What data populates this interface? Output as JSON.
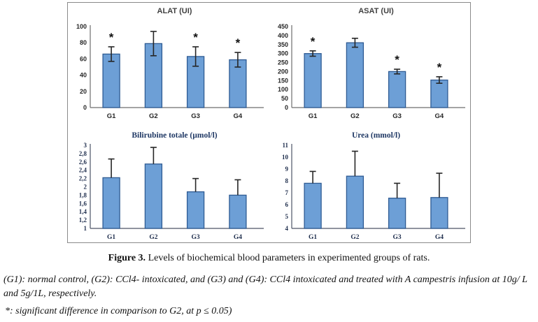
{
  "caption": {
    "figure_label": "Figure 3.",
    "figure_text": " Levels of biochemical blood parameters in experimented groups of rats.",
    "groups_note": "(G1): normal control, (G2): CCl4- intoxicated, and (G3) and (G4): CCl4 intoxicated and treated with A campestris infusion at 10g/ L and 5g/1L, respectively.",
    "significance_note": "*: significant difference in comparison to G2, at p ≤ 0.05)"
  },
  "colors": {
    "bar_fill": "#6d9fd6",
    "bar_border": "#2f5b93",
    "error_bar": "#262626",
    "significance_marker": "#111111"
  },
  "chart_data": [
    {
      "type": "bar",
      "title": "ALAT (UI)",
      "categories": [
        "G1",
        "G2",
        "G3",
        "G4"
      ],
      "values": [
        66,
        79,
        63,
        59
      ],
      "errors_up": [
        9,
        15,
        12,
        9
      ],
      "errors_down": [
        9,
        15,
        12,
        9
      ],
      "significant": [
        true,
        false,
        true,
        true
      ],
      "ylim": [
        0,
        100
      ],
      "ytick_values": [
        0,
        20,
        40,
        60,
        80,
        100
      ],
      "ytick_labels": [
        "0",
        "20",
        "40",
        "60",
        "80",
        "100"
      ],
      "grid": false,
      "legend": "none"
    },
    {
      "type": "bar",
      "title": "ASAT (UI)",
      "categories": [
        "G1",
        "G2",
        "G3",
        "G4"
      ],
      "values": [
        300,
        360,
        200,
        153
      ],
      "errors_up": [
        15,
        25,
        13,
        18
      ],
      "errors_down": [
        15,
        25,
        13,
        18
      ],
      "significant": [
        true,
        false,
        true,
        true
      ],
      "ylim": [
        0,
        450
      ],
      "ytick_values": [
        0,
        50,
        100,
        150,
        200,
        250,
        300,
        350,
        400,
        450
      ],
      "ytick_labels": [
        "0",
        "50",
        "100",
        "150",
        "200",
        "250",
        "300",
        "350",
        "400",
        "450"
      ],
      "grid": false,
      "legend": "none"
    },
    {
      "type": "bar",
      "title": "Bilirubine totale (µmol/l)",
      "categories": [
        "G1",
        "G2",
        "G3",
        "G4"
      ],
      "values": [
        2.22,
        2.55,
        1.88,
        1.8
      ],
      "errors_up": [
        0.45,
        0.4,
        0.32,
        0.37
      ],
      "errors_down": [
        0,
        0,
        0,
        0
      ],
      "significant": [
        false,
        false,
        false,
        false
      ],
      "ylim": [
        1,
        3
      ],
      "ytick_values": [
        1,
        1.2,
        1.4,
        1.6,
        1.8,
        2,
        2.2,
        2.4,
        2.6,
        2.8,
        3
      ],
      "ytick_labels": [
        "1",
        "1,2",
        "1,4",
        "1,6",
        "1,8",
        "2",
        "2,2",
        "2,4",
        "2,6",
        "2,8",
        "3"
      ],
      "grid": false,
      "legend": "none"
    },
    {
      "type": "bar",
      "title": "Urea (mmol/l)",
      "categories": [
        "G1",
        "G2",
        "G3",
        "G4"
      ],
      "values": [
        7.8,
        8.4,
        6.55,
        6.6
      ],
      "errors_up": [
        1.0,
        2.1,
        1.25,
        2.05
      ],
      "errors_down": [
        0,
        0,
        0,
        0
      ],
      "significant": [
        false,
        false,
        false,
        false
      ],
      "ylim": [
        4,
        11
      ],
      "ytick_values": [
        4,
        5,
        6,
        7,
        8,
        9,
        10,
        11
      ],
      "ytick_labels": [
        "4",
        "5",
        "6",
        "7",
        "8",
        "9",
        "10",
        "11"
      ],
      "grid": false,
      "legend": "none"
    }
  ]
}
